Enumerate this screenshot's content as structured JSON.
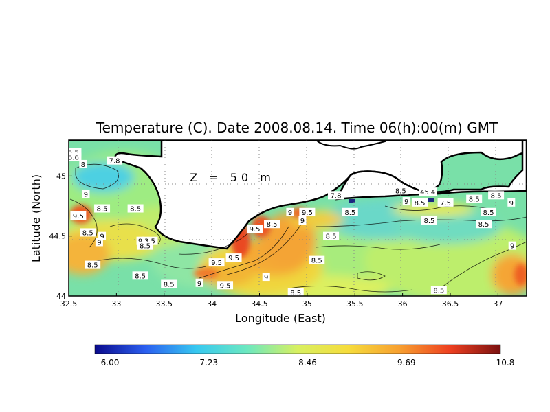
{
  "chart_data": {
    "type": "heatmap",
    "title": "Temperature (C). Date 2008.08.14. Time 06(h):00(m) GMT",
    "annotation": "Z = 50 m",
    "xlabel": "Longitude (East)",
    "ylabel": "Latitude (North)",
    "xlim": [
      32.5,
      37.3
    ],
    "ylim": [
      44.0,
      45.3
    ],
    "x_ticks": [
      "32.5",
      "33",
      "33.5",
      "34",
      "34.5",
      "35",
      "35.5",
      "36",
      "36.5",
      "37"
    ],
    "y_ticks": [
      "44",
      "44.5",
      "45"
    ],
    "grid": true,
    "colorbar": {
      "min": 6.0,
      "max": 10.8,
      "tick_labels": [
        "6.00",
        "7.23",
        "8.46",
        "9.69",
        "10.8"
      ],
      "colors": [
        "#0a0a8c",
        "#2b5ff0",
        "#37c8f0",
        "#6ce8c0",
        "#d8f060",
        "#f6dc3c",
        "#f7a030",
        "#ee4020",
        "#7a1010"
      ]
    },
    "contour_labels": [
      {
        "text": "5.5",
        "lon": 32.55,
        "lat": 45.2
      },
      {
        "text": "5.6",
        "lon": 32.55,
        "lat": 45.16
      },
      {
        "text": "8",
        "lon": 32.65,
        "lat": 45.1
      },
      {
        "text": "7.8",
        "lon": 32.98,
        "lat": 45.13
      },
      {
        "text": "9",
        "lon": 32.68,
        "lat": 44.85
      },
      {
        "text": "9.5",
        "lon": 32.6,
        "lat": 44.67
      },
      {
        "text": "8.5",
        "lon": 32.85,
        "lat": 44.73
      },
      {
        "text": "8.5",
        "lon": 33.2,
        "lat": 44.73
      },
      {
        "text": "8.5",
        "lon": 32.7,
        "lat": 44.53
      },
      {
        "text": "9",
        "lon": 32.85,
        "lat": 44.5
      },
      {
        "text": "9",
        "lon": 32.82,
        "lat": 44.45
      },
      {
        "text": "8.5",
        "lon": 32.75,
        "lat": 44.26
      },
      {
        "text": "9",
        "lon": 33.25,
        "lat": 44.46
      },
      {
        "text": "3.5",
        "lon": 33.35,
        "lat": 44.46
      },
      {
        "text": "8.5",
        "lon": 33.3,
        "lat": 44.42
      },
      {
        "text": "8.5",
        "lon": 33.25,
        "lat": 44.17
      },
      {
        "text": "8.5",
        "lon": 33.55,
        "lat": 44.1
      },
      {
        "text": "9",
        "lon": 33.87,
        "lat": 44.11
      },
      {
        "text": "9.5",
        "lon": 34.05,
        "lat": 44.28
      },
      {
        "text": "9.5",
        "lon": 34.23,
        "lat": 44.32
      },
      {
        "text": "9.5",
        "lon": 34.14,
        "lat": 44.09
      },
      {
        "text": "9.5",
        "lon": 34.45,
        "lat": 44.56
      },
      {
        "text": "8.5",
        "lon": 34.63,
        "lat": 44.6
      },
      {
        "text": "9",
        "lon": 34.82,
        "lat": 44.7
      },
      {
        "text": "9.5",
        "lon": 35.0,
        "lat": 44.7
      },
      {
        "text": "9",
        "lon": 34.95,
        "lat": 44.63
      },
      {
        "text": "8.5",
        "lon": 35.25,
        "lat": 44.5
      },
      {
        "text": "8.5",
        "lon": 35.1,
        "lat": 44.3
      },
      {
        "text": "9",
        "lon": 34.57,
        "lat": 44.16
      },
      {
        "text": "8.5",
        "lon": 34.88,
        "lat": 44.03
      },
      {
        "text": "7.8",
        "lon": 35.3,
        "lat": 44.84
      },
      {
        "text": "8.5",
        "lon": 35.45,
        "lat": 44.7
      },
      {
        "text": "8.5",
        "lon": 35.98,
        "lat": 44.88
      },
      {
        "text": "9",
        "lon": 36.04,
        "lat": 44.79
      },
      {
        "text": "8.5",
        "lon": 36.18,
        "lat": 44.78
      },
      {
        "text": "7.5",
        "lon": 36.45,
        "lat": 44.78
      },
      {
        "text": "8.5",
        "lon": 36.75,
        "lat": 44.81
      },
      {
        "text": "8.5",
        "lon": 36.98,
        "lat": 44.84
      },
      {
        "text": "9",
        "lon": 37.14,
        "lat": 44.78
      },
      {
        "text": "8.5",
        "lon": 36.9,
        "lat": 44.7
      },
      {
        "text": "8.5",
        "lon": 36.28,
        "lat": 44.63
      },
      {
        "text": "8.5",
        "lon": 36.85,
        "lat": 44.6
      },
      {
        "text": "9",
        "lon": 37.15,
        "lat": 44.42
      },
      {
        "text": "8.5",
        "lon": 36.38,
        "lat": 44.05
      },
      {
        "text": "45",
        "lon": 36.23,
        "lat": 44.87
      },
      {
        "text": "4",
        "lon": 36.32,
        "lat": 44.87
      }
    ]
  }
}
